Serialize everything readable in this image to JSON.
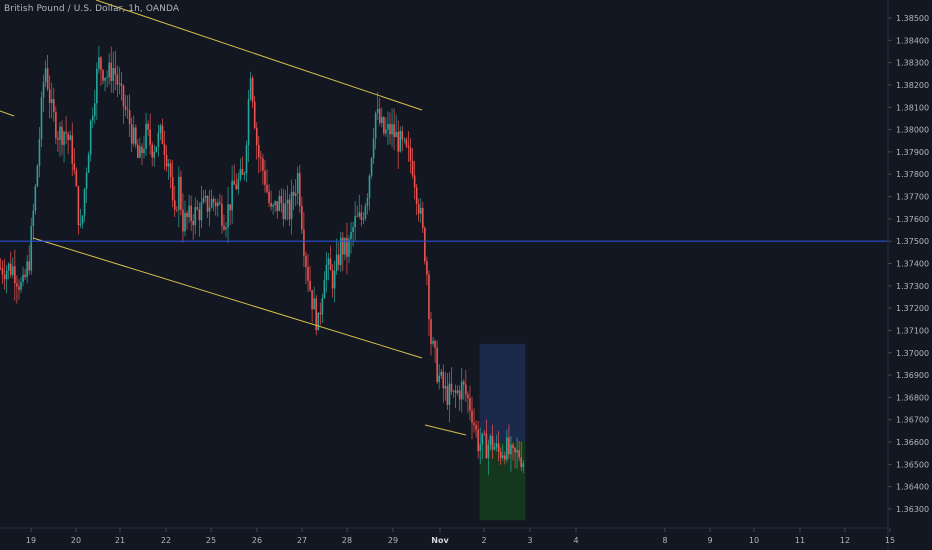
{
  "header": {
    "title": "British Pound / U.S. Dollar, 1h, OANDA"
  },
  "colors": {
    "background": "#131722",
    "up": "#26a69a",
    "down": "#ef5350",
    "trendline": "#d4c04a",
    "level_line": "#2b4fd6",
    "target_zone": "#1b2b4f",
    "stop_zone": "#15391f",
    "axis_text": "#b2b5be",
    "axis_border": "#2a2e39"
  },
  "chart_data": {
    "type": "candlestick",
    "x_ticks": [
      "19",
      "20",
      "21",
      "22",
      "25",
      "26",
      "27",
      "28",
      "29",
      "Nov",
      "2",
      "3",
      "4",
      "8",
      "9",
      "10",
      "11",
      "12",
      "15"
    ],
    "y_ticks": [
      "1.38500",
      "1.38400",
      "1.38300",
      "1.38200",
      "1.38100",
      "1.38000",
      "1.37900",
      "1.37800",
      "1.37700",
      "1.37600",
      "1.37500",
      "1.37400",
      "1.37300",
      "1.37200",
      "1.37100",
      "1.37000",
      "1.36900",
      "1.36800",
      "1.36700",
      "1.36600",
      "1.36500",
      "1.36400",
      "1.36300"
    ],
    "y_tick_values": [
      1.385,
      1.384,
      1.383,
      1.382,
      1.381,
      1.38,
      1.379,
      1.378,
      1.377,
      1.376,
      1.375,
      1.374,
      1.373,
      1.372,
      1.371,
      1.37,
      1.369,
      1.368,
      1.367,
      1.366,
      1.365,
      1.364,
      1.363
    ],
    "ylim": [
      1.36228,
      1.38617
    ],
    "close_path": [
      [
        18.6,
        1.3738
      ],
      [
        18.8,
        1.3728
      ],
      [
        18.95,
        1.3742
      ],
      [
        19.1,
        1.3776
      ],
      [
        19.3,
        1.383
      ],
      [
        19.45,
        1.3808
      ],
      [
        19.6,
        1.3798
      ],
      [
        19.75,
        1.38
      ],
      [
        19.9,
        1.379
      ],
      [
        20.0,
        1.377
      ],
      [
        20.1,
        1.3752
      ],
      [
        20.2,
        1.3778
      ],
      [
        20.35,
        1.3808
      ],
      [
        20.5,
        1.383
      ],
      [
        20.7,
        1.3824
      ],
      [
        20.85,
        1.3828
      ],
      [
        21.0,
        1.3815
      ],
      [
        21.2,
        1.3803
      ],
      [
        21.4,
        1.3785
      ],
      [
        21.55,
        1.3798
      ],
      [
        21.7,
        1.3792
      ],
      [
        21.9,
        1.3798
      ],
      [
        22.05,
        1.3785
      ],
      [
        22.2,
        1.3788
      ],
      [
        22.35,
        1.377
      ],
      [
        22.5,
        1.3755
      ],
      [
        22.7,
        1.377
      ],
      [
        22.9,
        1.378
      ],
      [
        23.0,
        1.3758
      ],
      [
        25.1,
        1.3768
      ],
      [
        25.3,
        1.376
      ],
      [
        25.5,
        1.3775
      ],
      [
        25.7,
        1.3778
      ],
      [
        25.85,
        1.3828
      ],
      [
        26.0,
        1.379
      ],
      [
        26.15,
        1.378
      ],
      [
        26.3,
        1.3762
      ],
      [
        26.5,
        1.3768
      ],
      [
        26.7,
        1.3762
      ],
      [
        26.9,
        1.378
      ],
      [
        27.05,
        1.3745
      ],
      [
        27.2,
        1.3725
      ],
      [
        27.35,
        1.3712
      ],
      [
        27.5,
        1.374
      ],
      [
        27.7,
        1.3732
      ],
      [
        27.85,
        1.3748
      ],
      [
        28.0,
        1.3745
      ],
      [
        28.15,
        1.3758
      ],
      [
        28.3,
        1.376
      ],
      [
        28.45,
        1.3775
      ],
      [
        28.6,
        1.3808
      ],
      [
        28.8,
        1.3798
      ],
      [
        28.95,
        1.38
      ],
      [
        29.1,
        1.3795
      ],
      [
        29.25,
        1.379
      ],
      [
        29.4,
        1.3785
      ],
      [
        29.55,
        1.3765
      ],
      [
        29.7,
        1.374
      ],
      [
        29.8,
        1.3705
      ],
      [
        29.95,
        1.369
      ],
      [
        30.1,
        1.3682
      ],
      [
        30.3,
        1.368
      ],
      [
        30.5,
        1.3685
      ],
      [
        30.7,
        1.3675
      ],
      [
        30.85,
        1.366
      ],
      [
        31.0,
        1.3658
      ],
      [
        31.15,
        1.366
      ],
      [
        31.3,
        1.3655
      ],
      [
        31.45,
        1.3658
      ],
      [
        31.6,
        1.3652
      ],
      [
        31.75,
        1.3655
      ],
      [
        31.85,
        1.3652
      ]
    ],
    "annotations": {
      "trendline_upper": [
        [
          18.0,
          1.3808
        ],
        [
          29.7,
          1.3809
        ]
      ],
      "trendline_lower": [
        [
          19.0,
          1.3749
        ],
        [
          29.7,
          1.3698
        ]
      ],
      "trendline_lower_ext": [
        [
          29.7,
          1.3669
        ],
        [
          30.9,
          1.3662
        ]
      ],
      "horizontal_level": 1.375,
      "long_position": {
        "x_start": 30.9,
        "x_end": 31.9,
        "entry": 1.366,
        "target": 1.3704,
        "stop": 1.3625
      }
    },
    "grid": false,
    "legend": "none"
  }
}
